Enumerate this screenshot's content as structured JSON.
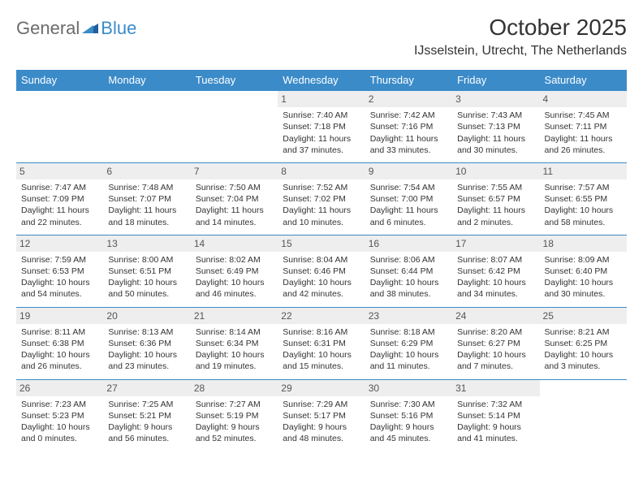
{
  "brand": {
    "part1": "General",
    "part2": "Blue"
  },
  "title": "October 2025",
  "location": "IJsselstein, Utrecht, The Netherlands",
  "headers": [
    "Sunday",
    "Monday",
    "Tuesday",
    "Wednesday",
    "Thursday",
    "Friday",
    "Saturday"
  ],
  "colors": {
    "header_bg": "#3b8bc9",
    "header_fg": "#ffffff",
    "daynum_bg": "#eeeeee",
    "border": "#3b8bc9",
    "body_bg": "#ffffff",
    "text": "#333333",
    "logo_gray": "#6b6b6b",
    "logo_blue": "#3b8bc9"
  },
  "weeks": [
    [
      {
        "n": "",
        "sr": "",
        "ss": "",
        "dl": ""
      },
      {
        "n": "",
        "sr": "",
        "ss": "",
        "dl": ""
      },
      {
        "n": "",
        "sr": "",
        "ss": "",
        "dl": ""
      },
      {
        "n": "1",
        "sr": "Sunrise: 7:40 AM",
        "ss": "Sunset: 7:18 PM",
        "dl": "Daylight: 11 hours and 37 minutes."
      },
      {
        "n": "2",
        "sr": "Sunrise: 7:42 AM",
        "ss": "Sunset: 7:16 PM",
        "dl": "Daylight: 11 hours and 33 minutes."
      },
      {
        "n": "3",
        "sr": "Sunrise: 7:43 AM",
        "ss": "Sunset: 7:13 PM",
        "dl": "Daylight: 11 hours and 30 minutes."
      },
      {
        "n": "4",
        "sr": "Sunrise: 7:45 AM",
        "ss": "Sunset: 7:11 PM",
        "dl": "Daylight: 11 hours and 26 minutes."
      }
    ],
    [
      {
        "n": "5",
        "sr": "Sunrise: 7:47 AM",
        "ss": "Sunset: 7:09 PM",
        "dl": "Daylight: 11 hours and 22 minutes."
      },
      {
        "n": "6",
        "sr": "Sunrise: 7:48 AM",
        "ss": "Sunset: 7:07 PM",
        "dl": "Daylight: 11 hours and 18 minutes."
      },
      {
        "n": "7",
        "sr": "Sunrise: 7:50 AM",
        "ss": "Sunset: 7:04 PM",
        "dl": "Daylight: 11 hours and 14 minutes."
      },
      {
        "n": "8",
        "sr": "Sunrise: 7:52 AM",
        "ss": "Sunset: 7:02 PM",
        "dl": "Daylight: 11 hours and 10 minutes."
      },
      {
        "n": "9",
        "sr": "Sunrise: 7:54 AM",
        "ss": "Sunset: 7:00 PM",
        "dl": "Daylight: 11 hours and 6 minutes."
      },
      {
        "n": "10",
        "sr": "Sunrise: 7:55 AM",
        "ss": "Sunset: 6:57 PM",
        "dl": "Daylight: 11 hours and 2 minutes."
      },
      {
        "n": "11",
        "sr": "Sunrise: 7:57 AM",
        "ss": "Sunset: 6:55 PM",
        "dl": "Daylight: 10 hours and 58 minutes."
      }
    ],
    [
      {
        "n": "12",
        "sr": "Sunrise: 7:59 AM",
        "ss": "Sunset: 6:53 PM",
        "dl": "Daylight: 10 hours and 54 minutes."
      },
      {
        "n": "13",
        "sr": "Sunrise: 8:00 AM",
        "ss": "Sunset: 6:51 PM",
        "dl": "Daylight: 10 hours and 50 minutes."
      },
      {
        "n": "14",
        "sr": "Sunrise: 8:02 AM",
        "ss": "Sunset: 6:49 PM",
        "dl": "Daylight: 10 hours and 46 minutes."
      },
      {
        "n": "15",
        "sr": "Sunrise: 8:04 AM",
        "ss": "Sunset: 6:46 PM",
        "dl": "Daylight: 10 hours and 42 minutes."
      },
      {
        "n": "16",
        "sr": "Sunrise: 8:06 AM",
        "ss": "Sunset: 6:44 PM",
        "dl": "Daylight: 10 hours and 38 minutes."
      },
      {
        "n": "17",
        "sr": "Sunrise: 8:07 AM",
        "ss": "Sunset: 6:42 PM",
        "dl": "Daylight: 10 hours and 34 minutes."
      },
      {
        "n": "18",
        "sr": "Sunrise: 8:09 AM",
        "ss": "Sunset: 6:40 PM",
        "dl": "Daylight: 10 hours and 30 minutes."
      }
    ],
    [
      {
        "n": "19",
        "sr": "Sunrise: 8:11 AM",
        "ss": "Sunset: 6:38 PM",
        "dl": "Daylight: 10 hours and 26 minutes."
      },
      {
        "n": "20",
        "sr": "Sunrise: 8:13 AM",
        "ss": "Sunset: 6:36 PM",
        "dl": "Daylight: 10 hours and 23 minutes."
      },
      {
        "n": "21",
        "sr": "Sunrise: 8:14 AM",
        "ss": "Sunset: 6:34 PM",
        "dl": "Daylight: 10 hours and 19 minutes."
      },
      {
        "n": "22",
        "sr": "Sunrise: 8:16 AM",
        "ss": "Sunset: 6:31 PM",
        "dl": "Daylight: 10 hours and 15 minutes."
      },
      {
        "n": "23",
        "sr": "Sunrise: 8:18 AM",
        "ss": "Sunset: 6:29 PM",
        "dl": "Daylight: 10 hours and 11 minutes."
      },
      {
        "n": "24",
        "sr": "Sunrise: 8:20 AM",
        "ss": "Sunset: 6:27 PM",
        "dl": "Daylight: 10 hours and 7 minutes."
      },
      {
        "n": "25",
        "sr": "Sunrise: 8:21 AM",
        "ss": "Sunset: 6:25 PM",
        "dl": "Daylight: 10 hours and 3 minutes."
      }
    ],
    [
      {
        "n": "26",
        "sr": "Sunrise: 7:23 AM",
        "ss": "Sunset: 5:23 PM",
        "dl": "Daylight: 10 hours and 0 minutes."
      },
      {
        "n": "27",
        "sr": "Sunrise: 7:25 AM",
        "ss": "Sunset: 5:21 PM",
        "dl": "Daylight: 9 hours and 56 minutes."
      },
      {
        "n": "28",
        "sr": "Sunrise: 7:27 AM",
        "ss": "Sunset: 5:19 PM",
        "dl": "Daylight: 9 hours and 52 minutes."
      },
      {
        "n": "29",
        "sr": "Sunrise: 7:29 AM",
        "ss": "Sunset: 5:17 PM",
        "dl": "Daylight: 9 hours and 48 minutes."
      },
      {
        "n": "30",
        "sr": "Sunrise: 7:30 AM",
        "ss": "Sunset: 5:16 PM",
        "dl": "Daylight: 9 hours and 45 minutes."
      },
      {
        "n": "31",
        "sr": "Sunrise: 7:32 AM",
        "ss": "Sunset: 5:14 PM",
        "dl": "Daylight: 9 hours and 41 minutes."
      },
      {
        "n": "",
        "sr": "",
        "ss": "",
        "dl": ""
      }
    ]
  ]
}
